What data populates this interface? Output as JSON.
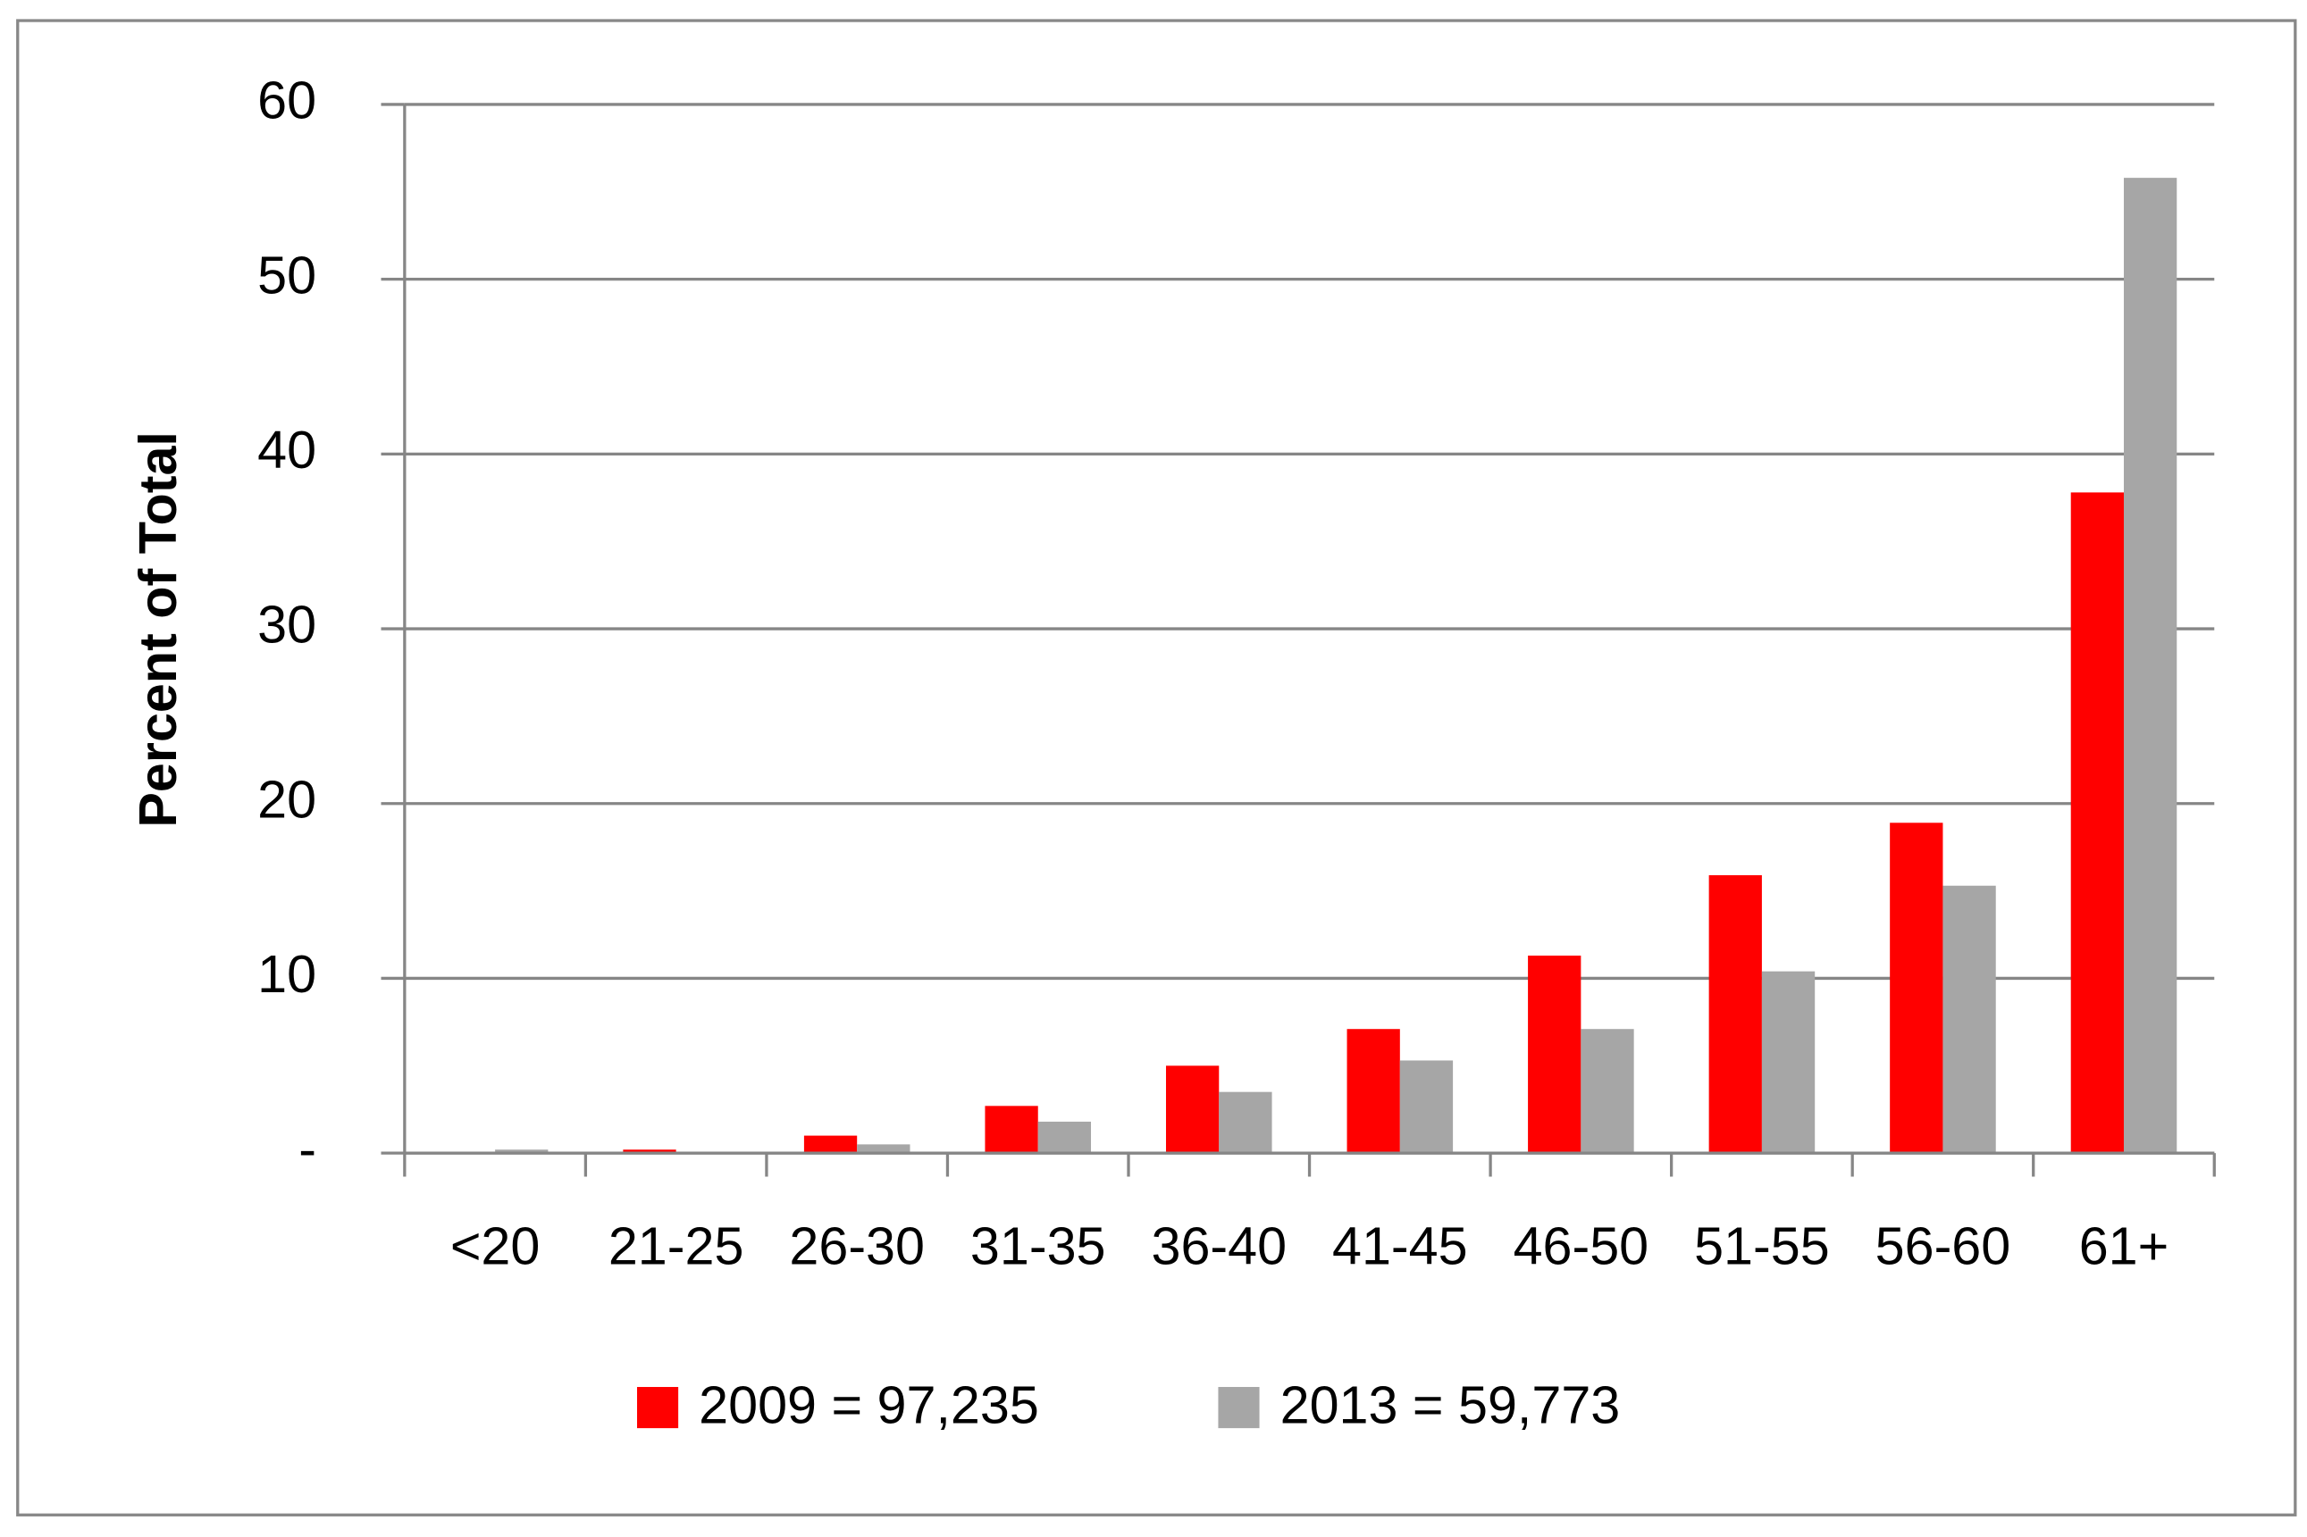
{
  "chart_data": {
    "type": "bar",
    "y_label": "Percent of Total",
    "categories": [
      "<20",
      "21-25",
      "26-30",
      "31-35",
      "36-40",
      "41-45",
      "46-50",
      "51-55",
      "56-60",
      "61+"
    ],
    "series": [
      {
        "name": "2009 = 97,235",
        "color": "#ff0000",
        "values": [
          0,
          0.2,
          1.0,
          2.7,
          5.0,
          7.1,
          11.3,
          15.9,
          18.9,
          37.8
        ]
      },
      {
        "name": "2013 = 59,773",
        "color": "#a6a6a6",
        "values": [
          0.2,
          0,
          0.5,
          1.8,
          3.5,
          5.3,
          7.1,
          10.4,
          15.3,
          55.8
        ]
      }
    ],
    "ylim": [
      0,
      60
    ],
    "yticks": [
      {
        "value": 0,
        "label": "-"
      },
      10,
      20,
      30,
      40,
      50,
      60
    ],
    "grid": true,
    "legend": "bottom"
  }
}
